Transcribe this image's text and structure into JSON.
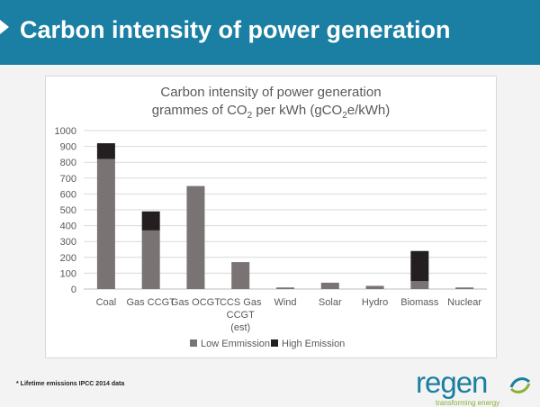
{
  "slide": {
    "title": "Carbon intensity of power generation",
    "footnote": "* Lifetime emissions IPCC 2014 data"
  },
  "logo": {
    "word": "regen",
    "tagline": "transforming energy"
  },
  "icons": {
    "header_arrow": "triangle-right-icon",
    "logo_mark": "swirl-icon"
  },
  "colors": {
    "header": "#1a7fa2",
    "low": "#7a7374",
    "high": "#231f20",
    "logo_green": "#8bb03a"
  },
  "chart_data": {
    "type": "bar",
    "stacked": true,
    "title_line1": "Carbon intensity of  power generation",
    "title_line2_parts": [
      "grammes of CO",
      "2",
      " per kWh (gCO",
      "2",
      "e/kWh)"
    ],
    "categories": [
      [
        "Coal"
      ],
      [
        "Gas CCGT"
      ],
      [
        "Gas OCGT"
      ],
      [
        "CCS Gas",
        "CCGT",
        "(est)"
      ],
      [
        "Wind"
      ],
      [
        "Solar"
      ],
      [
        "Hydro"
      ],
      [
        "Biomass"
      ],
      [
        "Nuclear"
      ]
    ],
    "series": [
      {
        "name": "Low Emmission",
        "values": [
          820,
          370,
          650,
          170,
          10,
          40,
          20,
          50,
          10
        ]
      },
      {
        "name": "High Emission",
        "values": [
          100,
          120,
          0,
          0,
          0,
          0,
          0,
          190,
          0
        ]
      }
    ],
    "ylim": [
      0,
      1000
    ],
    "yticks": [
      0,
      100,
      200,
      300,
      400,
      500,
      600,
      700,
      800,
      900,
      1000
    ],
    "grid": true,
    "legend_position": "bottom"
  }
}
